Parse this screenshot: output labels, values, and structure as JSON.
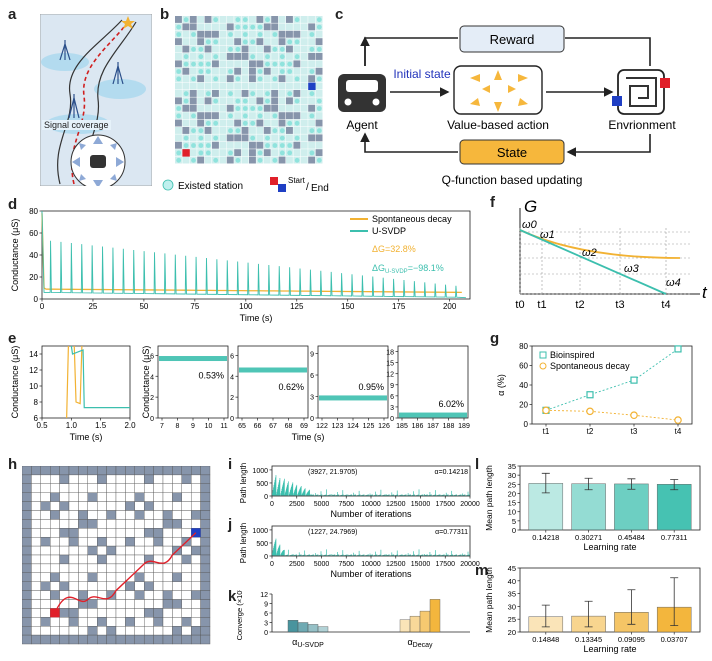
{
  "panels": {
    "a": "a",
    "b": "b",
    "c": "c",
    "d": "d",
    "e": "e",
    "f": "f",
    "g": "g",
    "h": "h",
    "i": "i",
    "j": "j",
    "k": "k",
    "l": "l",
    "m": "m"
  },
  "panel_a": {
    "signal_label": "Signal coverage"
  },
  "panel_b": {
    "legend_station": "Existed station",
    "legend_start": "Start",
    "legend_sep": "/",
    "legend_end": "End"
  },
  "panel_c": {
    "reward": "Reward",
    "initial_state": "Initial state",
    "agent": "Agent",
    "value_action": "Value-based action",
    "environment": "Envrionment",
    "state": "State",
    "qfunction": "Q-function based updating"
  },
  "colors": {
    "teal": "#3cbfae",
    "orange": "#f2b233",
    "reward_fill": "#e4edf7",
    "state_fill": "#f6b73c",
    "arrow": "#f6b73c",
    "grid_dark": "#8795ab",
    "start_red": "#e0202a",
    "end_blue": "#1f3fc4"
  },
  "chart_data": [
    {
      "id": "d",
      "type": "line",
      "title": "",
      "xlabel": "Time (s)",
      "ylabel": "Conductance (μS)",
      "xlim": [
        0,
        210
      ],
      "ylim": [
        0,
        80
      ],
      "xticks": [
        0,
        25,
        50,
        75,
        100,
        125,
        150,
        175,
        200
      ],
      "yticks": [
        0,
        20,
        40,
        60,
        80
      ],
      "series": [
        {
          "name": "Spontaneous decay",
          "color": "#f2b233"
        },
        {
          "name": "U-SVDP",
          "color": "#3cbfae"
        }
      ],
      "annotations": {
        "dg": "ΔG=32.8%",
        "dgu": "ΔG",
        "dgu_sub": "U-SVDP",
        "dgu_val": "=−98.1%"
      },
      "pulse_start": 53,
      "pulse_end": 12,
      "pulse_count": 40
    },
    {
      "id": "e1",
      "type": "line",
      "xlabel": "Time (s)",
      "ylabel": "Conductance (μS)",
      "xlim": [
        0.5,
        2.0
      ],
      "ylim": [
        6,
        15
      ],
      "xticks": [
        "0.5",
        "1.0",
        "1.5",
        "2.0"
      ],
      "yticks": [
        "6",
        "8",
        "10",
        "12",
        "14"
      ]
    },
    {
      "id": "e_sub",
      "type": "line",
      "ylabel": "Conductance (μS)",
      "xlabel": "Time (s)",
      "windows": [
        {
          "xticks": [
            "7",
            "8",
            "9",
            "10",
            "11"
          ],
          "yticks": [
            "0",
            "2",
            "4",
            "6"
          ],
          "ylim": [
            0,
            7
          ],
          "level": 5.7,
          "note": "0.53%"
        },
        {
          "xticks": [
            "65",
            "66",
            "67",
            "68",
            "69"
          ],
          "yticks": [
            "0",
            "2",
            "4",
            "6"
          ],
          "ylim": [
            0,
            7
          ],
          "level": 4.6,
          "note": "0.62%"
        },
        {
          "xticks": [
            "122",
            "123",
            "124",
            "125",
            "126"
          ],
          "yticks": [
            "0",
            "3",
            "6",
            "9"
          ],
          "ylim": [
            0,
            7
          ],
          "level": 2.8,
          "note": "0.95%"
        },
        {
          "xticks": [
            "185",
            "186",
            "187",
            "188",
            "189"
          ],
          "yticks": [
            "0",
            "3",
            "6",
            "9",
            "12",
            "15",
            "18"
          ],
          "ylim": [
            0,
            18
          ],
          "level": 0.8,
          "note": "6.02%"
        }
      ]
    },
    {
      "id": "f",
      "type": "line",
      "ylabel": "G",
      "xlabel": "t",
      "tlabels": [
        "t0",
        "t1",
        "t2",
        "t3",
        "t4"
      ],
      "wlabels": [
        "ω0",
        "ω1",
        "ω2",
        "ω3",
        "ω4"
      ]
    },
    {
      "id": "g",
      "type": "line",
      "ylabel": "α (%)",
      "categories": [
        "t1",
        "t2",
        "t3",
        "t4"
      ],
      "ylim": [
        0,
        80
      ],
      "yticks": [
        0,
        20,
        40,
        60,
        80
      ],
      "series": [
        {
          "name": "Bioinspired",
          "values": [
            14,
            30,
            45,
            77
          ],
          "color": "#3cbfae"
        },
        {
          "name": "Spontaneous decay",
          "values": [
            14,
            13,
            9,
            4
          ],
          "color": "#f2b233"
        }
      ]
    },
    {
      "id": "i",
      "type": "line",
      "ylabel": "Path length",
      "xlabel": "Number of iterations",
      "xlim": [
        0,
        20000
      ],
      "xticks": [
        0,
        2500,
        5000,
        7500,
        10000,
        12500,
        15000,
        17500,
        20000
      ],
      "yticks": [
        0,
        500,
        1000
      ],
      "annotation": "(3927, 21.9705)",
      "alpha": "α=0.14218"
    },
    {
      "id": "j",
      "type": "line",
      "ylabel": "Path length",
      "xlabel": "Number of iterations",
      "xlim": [
        0,
        20000
      ],
      "xticks": [
        0,
        2500,
        5000,
        7500,
        10000,
        12500,
        15000,
        17500,
        20000
      ],
      "yticks": [
        0,
        500,
        1000
      ],
      "annotation": "(1227, 24.7969)",
      "alpha": "α=0.77311"
    },
    {
      "id": "k",
      "type": "bar",
      "ylabel": "Converge (×10³)",
      "yticks": [
        0,
        3,
        6,
        9,
        12
      ],
      "ylim": [
        0,
        12
      ],
      "groups": [
        {
          "label": "α",
          "sub": "U-SVDP",
          "values": [
            3.7,
            3.0,
            2.4,
            1.7
          ],
          "color": "#3f8e99"
        },
        {
          "label": "α",
          "sub": "Decay",
          "values": [
            3.9,
            5.0,
            6.6,
            10.3
          ],
          "color": "#f2b233"
        }
      ]
    },
    {
      "id": "l",
      "type": "bar",
      "ylabel": "Mean path length",
      "xlabel": "Learning rate",
      "ylim": [
        0,
        35
      ],
      "yticks": [
        0,
        5,
        10,
        15,
        20,
        25,
        30,
        35
      ],
      "categories": [
        "0.14218",
        "0.30271",
        "0.45484",
        "0.77311"
      ],
      "values": [
        25.5,
        25.3,
        25.2,
        25.0
      ],
      "err": [
        [
          20.3,
          31.0
        ],
        [
          22.0,
          28.3
        ],
        [
          22.3,
          28.0
        ],
        [
          22.0,
          27.6
        ]
      ],
      "color": "#3cbfae"
    },
    {
      "id": "m",
      "type": "bar",
      "ylabel": "Mean path length",
      "xlabel": "Learning rate",
      "ylim": [
        20,
        45
      ],
      "yticks": [
        20,
        25,
        30,
        35,
        40,
        45
      ],
      "categories": [
        "0.14848",
        "0.13345",
        "0.09095",
        "0.03707"
      ],
      "values": [
        26.0,
        26.2,
        27.7,
        29.7
      ],
      "err": [
        [
          22.0,
          30.5
        ],
        [
          22.0,
          32.0
        ],
        [
          23.0,
          36.5
        ],
        [
          22.5,
          41.2
        ]
      ],
      "color": "#f2b233"
    }
  ]
}
